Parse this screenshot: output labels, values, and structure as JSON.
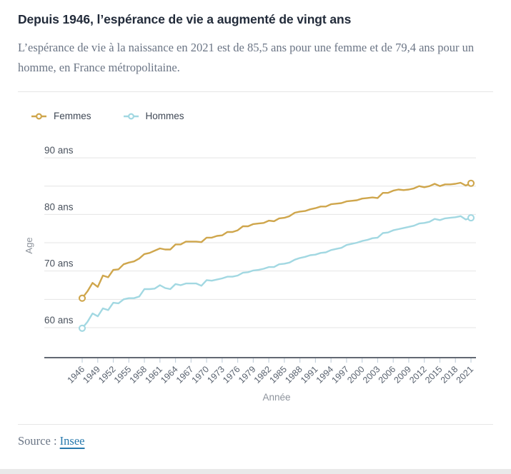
{
  "header": {
    "title": "Depuis 1946, l’espérance de vie a augmenté de vingt ans",
    "subtitle": "L’espérance de vie à la naissance en 2021 est de 85,5 ans pour une femme et de 79,4 ans pour un homme, en France métropolitaine."
  },
  "legend": [
    {
      "label": "Femmes",
      "color": "#CFA64C"
    },
    {
      "label": "Hommes",
      "color": "#A2D8E2"
    }
  ],
  "source": {
    "prefix": "Source : ",
    "link_label": "Insee",
    "link_color": "#2779ad"
  },
  "chart_data": {
    "type": "line",
    "title": "",
    "xlabel": "Année",
    "ylabel": "Age",
    "grid": true,
    "legend_position": "top-left",
    "ylim": [
      54.7,
      94.5
    ],
    "y_gridlines": [
      60,
      65,
      70,
      75,
      80,
      85,
      90
    ],
    "y_tick_labels": [
      {
        "value": 90,
        "label": "90 ans"
      },
      {
        "value": 80,
        "label": "80 ans"
      },
      {
        "value": 70,
        "label": "70 ans"
      },
      {
        "value": 60,
        "label": "60 ans"
      }
    ],
    "x_ticks": [
      1946,
      1949,
      1952,
      1955,
      1958,
      1961,
      1964,
      1967,
      1970,
      1973,
      1976,
      1979,
      1982,
      1985,
      1988,
      1991,
      1994,
      1997,
      2000,
      2003,
      2006,
      2009,
      2012,
      2015,
      2018,
      2021
    ],
    "x": [
      1946,
      1947,
      1948,
      1949,
      1950,
      1951,
      1952,
      1953,
      1954,
      1955,
      1956,
      1957,
      1958,
      1959,
      1960,
      1961,
      1962,
      1963,
      1964,
      1965,
      1966,
      1967,
      1968,
      1969,
      1970,
      1971,
      1972,
      1973,
      1974,
      1975,
      1976,
      1977,
      1978,
      1979,
      1980,
      1981,
      1982,
      1983,
      1984,
      1985,
      1986,
      1987,
      1988,
      1989,
      1990,
      1991,
      1992,
      1993,
      1994,
      1995,
      1996,
      1997,
      1998,
      1999,
      2000,
      2001,
      2002,
      2003,
      2004,
      2005,
      2006,
      2007,
      2008,
      2009,
      2010,
      2011,
      2012,
      2013,
      2014,
      2015,
      2016,
      2017,
      2018,
      2019,
      2020,
      2021
    ],
    "series": [
      {
        "name": "Femmes",
        "color": "#CFA64C",
        "values": [
          65.2,
          66.4,
          67.9,
          67.2,
          69.2,
          68.9,
          70.2,
          70.3,
          71.2,
          71.5,
          71.7,
          72.2,
          73.0,
          73.2,
          73.6,
          74.0,
          73.8,
          73.8,
          74.7,
          74.7,
          75.2,
          75.2,
          75.2,
          75.1,
          75.9,
          75.9,
          76.2,
          76.3,
          76.9,
          76.9,
          77.2,
          77.9,
          77.9,
          78.3,
          78.4,
          78.5,
          78.9,
          78.8,
          79.3,
          79.4,
          79.7,
          80.3,
          80.5,
          80.6,
          80.9,
          81.1,
          81.4,
          81.4,
          81.8,
          81.9,
          82.0,
          82.3,
          82.4,
          82.5,
          82.8,
          82.9,
          83.0,
          82.9,
          83.8,
          83.8,
          84.2,
          84.4,
          84.3,
          84.4,
          84.6,
          85.0,
          84.8,
          85.0,
          85.4,
          85.0,
          85.3,
          85.3,
          85.4,
          85.6,
          85.1,
          85.5
        ]
      },
      {
        "name": "Hommes",
        "color": "#A2D8E2",
        "values": [
          59.9,
          61.0,
          62.5,
          62.0,
          63.4,
          63.1,
          64.4,
          64.3,
          65.0,
          65.2,
          65.2,
          65.5,
          66.8,
          66.8,
          66.9,
          67.5,
          67.0,
          66.8,
          67.7,
          67.5,
          67.8,
          67.8,
          67.8,
          67.4,
          68.4,
          68.3,
          68.5,
          68.7,
          69.0,
          69.0,
          69.2,
          69.7,
          69.8,
          70.1,
          70.2,
          70.4,
          70.7,
          70.7,
          71.2,
          71.3,
          71.5,
          72.0,
          72.3,
          72.5,
          72.8,
          72.9,
          73.2,
          73.3,
          73.7,
          73.9,
          74.1,
          74.6,
          74.8,
          75.0,
          75.3,
          75.5,
          75.8,
          75.9,
          76.7,
          76.8,
          77.2,
          77.4,
          77.6,
          77.8,
          78.0,
          78.4,
          78.5,
          78.7,
          79.2,
          79.0,
          79.3,
          79.4,
          79.5,
          79.7,
          79.1,
          79.4
        ]
      }
    ],
    "style": {
      "gridline_color": "#e4e4e4",
      "axis_line_color": "#2e3744",
      "tick_color": "#c5d1dc",
      "tick_label_color": "#59626f",
      "y_label_color": "#4a525e",
      "axis_title_color": "#8d939c"
    }
  }
}
